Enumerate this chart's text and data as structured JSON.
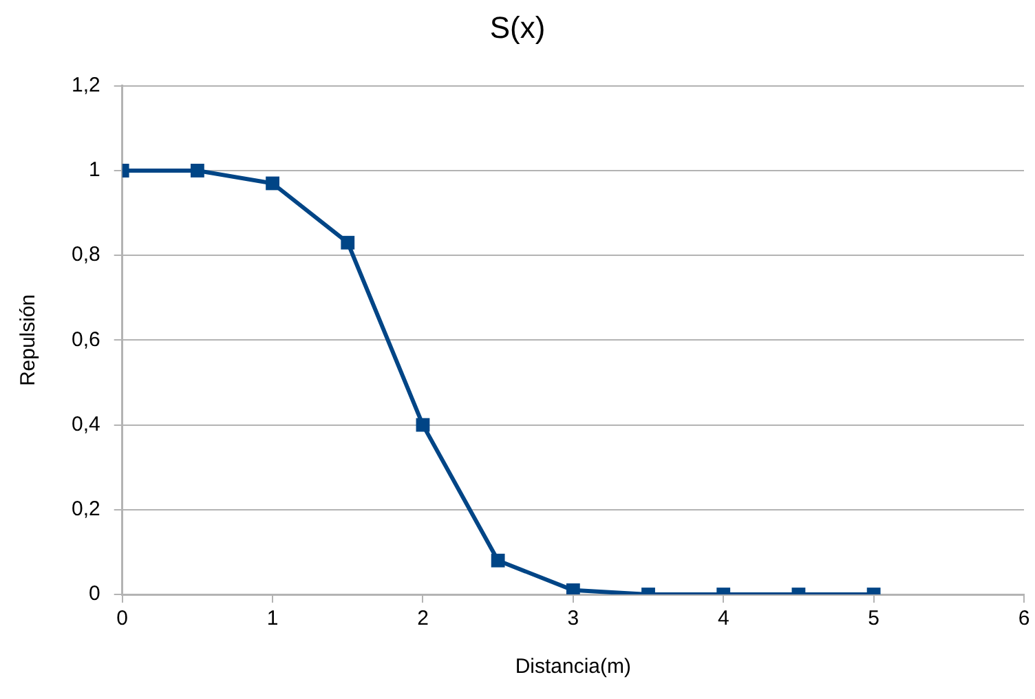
{
  "chart_data": {
    "type": "line",
    "title": "S(x)",
    "xlabel": "Distancia(m)",
    "ylabel": "Repulsión",
    "x": [
      0,
      0.5,
      1,
      1.5,
      2,
      2.5,
      3,
      3.5,
      4,
      4.5,
      5
    ],
    "series": [
      {
        "color": "#004586",
        "values": [
          1,
          1,
          0.97,
          0.83,
          0.4,
          0.08,
          0.01,
          0,
          0,
          0,
          0
        ]
      }
    ],
    "xlim": [
      0,
      6
    ],
    "xticks": [
      0,
      1,
      2,
      3,
      4,
      5,
      6
    ],
    "ylim": [
      0,
      1.2
    ],
    "yticks": [
      0,
      {
        "value": 0.2,
        "label": "0,2"
      },
      {
        "value": 0.4,
        "label": "0,4"
      },
      {
        "value": 0.6,
        "label": "0,6"
      },
      {
        "value": 0.8,
        "label": "0,8"
      },
      1,
      {
        "value": 1.2,
        "label": "1,2"
      }
    ],
    "grid": "y",
    "legend": false,
    "marker": "square",
    "line_style": "solid"
  }
}
